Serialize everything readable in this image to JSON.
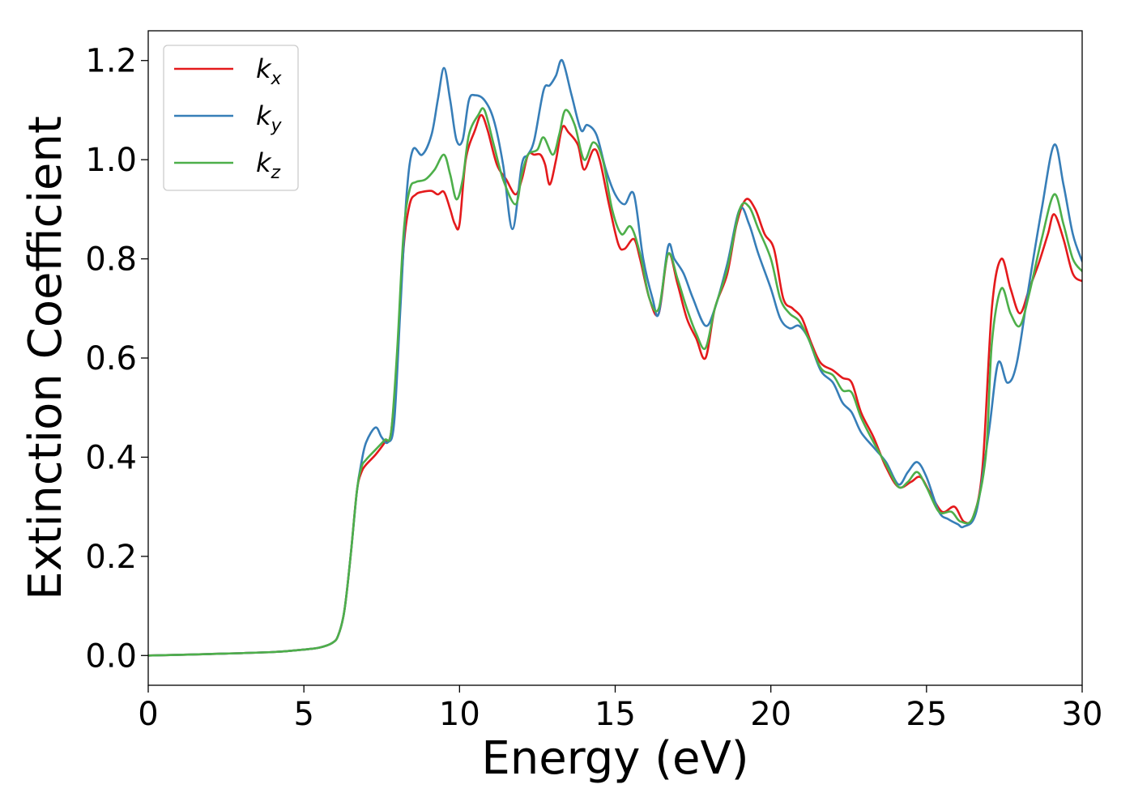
{
  "chart_data": {
    "type": "line",
    "title": "",
    "xlabel": "Energy (eV)",
    "ylabel": "Extinction Coefficient",
    "xlim": [
      0,
      30
    ],
    "ylim": [
      -0.06,
      1.26
    ],
    "xticks": [
      0,
      5,
      10,
      15,
      20,
      25,
      30
    ],
    "xtick_labels": [
      "0",
      "5",
      "10",
      "15",
      "20",
      "25",
      "30"
    ],
    "yticks": [
      0.0,
      0.2,
      0.4,
      0.6,
      0.8,
      1.0,
      1.2
    ],
    "ytick_labels": [
      "0.0",
      "0.2",
      "0.4",
      "0.6",
      "0.8",
      "1.0",
      "1.2"
    ],
    "grid": false,
    "legend_position": "top-left",
    "series": [
      {
        "name": "k",
        "subscript": "x",
        "color": "#e41a1c",
        "points": [
          [
            0,
            0.0
          ],
          [
            2,
            0.003
          ],
          [
            4,
            0.007
          ],
          [
            5,
            0.012
          ],
          [
            5.5,
            0.016
          ],
          [
            5.9,
            0.025
          ],
          [
            6.1,
            0.04
          ],
          [
            6.3,
            0.09
          ],
          [
            6.5,
            0.2
          ],
          [
            6.7,
            0.33
          ],
          [
            6.85,
            0.37
          ],
          [
            7,
            0.385
          ],
          [
            7.3,
            0.405
          ],
          [
            7.6,
            0.43
          ],
          [
            7.8,
            0.45
          ],
          [
            8.0,
            0.6
          ],
          [
            8.2,
            0.82
          ],
          [
            8.4,
            0.91
          ],
          [
            8.6,
            0.93
          ],
          [
            8.8,
            0.935
          ],
          [
            9.1,
            0.937
          ],
          [
            9.3,
            0.93
          ],
          [
            9.5,
            0.935
          ],
          [
            9.7,
            0.9
          ],
          [
            9.85,
            0.87
          ],
          [
            10.0,
            0.87
          ],
          [
            10.2,
            1.0
          ],
          [
            10.5,
            1.06
          ],
          [
            10.7,
            1.09
          ],
          [
            10.9,
            1.06
          ],
          [
            11.2,
            0.99
          ],
          [
            11.5,
            0.96
          ],
          [
            11.8,
            0.93
          ],
          [
            12.0,
            0.96
          ],
          [
            12.2,
            1.01
          ],
          [
            12.4,
            1.01
          ],
          [
            12.6,
            1.01
          ],
          [
            12.75,
            0.99
          ],
          [
            12.9,
            0.95
          ],
          [
            13.1,
            1.0
          ],
          [
            13.3,
            1.065
          ],
          [
            13.5,
            1.055
          ],
          [
            13.8,
            1.03
          ],
          [
            14.0,
            0.98
          ],
          [
            14.3,
            1.02
          ],
          [
            14.5,
            1.0
          ],
          [
            14.8,
            0.91
          ],
          [
            15.1,
            0.83
          ],
          [
            15.3,
            0.82
          ],
          [
            15.6,
            0.84
          ],
          [
            15.8,
            0.8
          ],
          [
            16.1,
            0.72
          ],
          [
            16.4,
            0.69
          ],
          [
            16.7,
            0.81
          ],
          [
            17.0,
            0.75
          ],
          [
            17.3,
            0.68
          ],
          [
            17.6,
            0.64
          ],
          [
            17.9,
            0.6
          ],
          [
            18.2,
            0.7
          ],
          [
            18.6,
            0.77
          ],
          [
            18.9,
            0.87
          ],
          [
            19.2,
            0.92
          ],
          [
            19.5,
            0.9
          ],
          [
            19.8,
            0.85
          ],
          [
            20.1,
            0.82
          ],
          [
            20.4,
            0.72
          ],
          [
            20.7,
            0.7
          ],
          [
            21.0,
            0.68
          ],
          [
            21.3,
            0.63
          ],
          [
            21.6,
            0.59
          ],
          [
            22.0,
            0.575
          ],
          [
            22.3,
            0.56
          ],
          [
            22.6,
            0.55
          ],
          [
            22.9,
            0.49
          ],
          [
            23.3,
            0.44
          ],
          [
            23.7,
            0.38
          ],
          [
            24.1,
            0.34
          ],
          [
            24.5,
            0.35
          ],
          [
            24.8,
            0.36
          ],
          [
            25.1,
            0.33
          ],
          [
            25.5,
            0.29
          ],
          [
            25.9,
            0.3
          ],
          [
            26.2,
            0.27
          ],
          [
            26.5,
            0.28
          ],
          [
            26.8,
            0.38
          ],
          [
            27.1,
            0.7
          ],
          [
            27.4,
            0.8
          ],
          [
            27.7,
            0.74
          ],
          [
            28.0,
            0.69
          ],
          [
            28.3,
            0.74
          ],
          [
            28.6,
            0.79
          ],
          [
            28.9,
            0.85
          ],
          [
            29.1,
            0.89
          ],
          [
            29.4,
            0.84
          ],
          [
            29.7,
            0.77
          ],
          [
            30.0,
            0.755
          ]
        ]
      },
      {
        "name": "k",
        "subscript": "y",
        "color": "#377eb8",
        "points": [
          [
            0,
            0.0
          ],
          [
            2,
            0.003
          ],
          [
            4,
            0.007
          ],
          [
            5,
            0.012
          ],
          [
            5.5,
            0.016
          ],
          [
            5.9,
            0.025
          ],
          [
            6.1,
            0.04
          ],
          [
            6.3,
            0.09
          ],
          [
            6.5,
            0.2
          ],
          [
            6.7,
            0.33
          ],
          [
            6.85,
            0.39
          ],
          [
            7.0,
            0.43
          ],
          [
            7.3,
            0.46
          ],
          [
            7.5,
            0.44
          ],
          [
            7.7,
            0.43
          ],
          [
            7.9,
            0.47
          ],
          [
            8.1,
            0.7
          ],
          [
            8.3,
            0.93
          ],
          [
            8.5,
            1.02
          ],
          [
            8.8,
            1.01
          ],
          [
            9.1,
            1.05
          ],
          [
            9.3,
            1.12
          ],
          [
            9.5,
            1.185
          ],
          [
            9.7,
            1.12
          ],
          [
            9.9,
            1.04
          ],
          [
            10.1,
            1.04
          ],
          [
            10.3,
            1.12
          ],
          [
            10.5,
            1.13
          ],
          [
            10.8,
            1.12
          ],
          [
            11.1,
            1.08
          ],
          [
            11.4,
            0.99
          ],
          [
            11.7,
            0.86
          ],
          [
            12.0,
            0.99
          ],
          [
            12.2,
            1.01
          ],
          [
            12.4,
            1.04
          ],
          [
            12.7,
            1.14
          ],
          [
            12.9,
            1.15
          ],
          [
            13.1,
            1.17
          ],
          [
            13.3,
            1.2
          ],
          [
            13.6,
            1.13
          ],
          [
            13.9,
            1.06
          ],
          [
            14.1,
            1.07
          ],
          [
            14.4,
            1.05
          ],
          [
            14.7,
            0.98
          ],
          [
            15.0,
            0.93
          ],
          [
            15.3,
            0.91
          ],
          [
            15.6,
            0.93
          ],
          [
            15.9,
            0.8
          ],
          [
            16.2,
            0.72
          ],
          [
            16.4,
            0.69
          ],
          [
            16.7,
            0.825
          ],
          [
            16.9,
            0.8
          ],
          [
            17.2,
            0.77
          ],
          [
            17.5,
            0.72
          ],
          [
            17.9,
            0.665
          ],
          [
            18.2,
            0.7
          ],
          [
            18.6,
            0.79
          ],
          [
            19.0,
            0.9
          ],
          [
            19.3,
            0.87
          ],
          [
            19.6,
            0.81
          ],
          [
            20.0,
            0.74
          ],
          [
            20.3,
            0.68
          ],
          [
            20.6,
            0.66
          ],
          [
            20.9,
            0.665
          ],
          [
            21.2,
            0.64
          ],
          [
            21.6,
            0.575
          ],
          [
            22.0,
            0.55
          ],
          [
            22.3,
            0.51
          ],
          [
            22.6,
            0.49
          ],
          [
            22.9,
            0.45
          ],
          [
            23.3,
            0.42
          ],
          [
            23.7,
            0.39
          ],
          [
            24.1,
            0.345
          ],
          [
            24.4,
            0.37
          ],
          [
            24.7,
            0.39
          ],
          [
            25.0,
            0.36
          ],
          [
            25.4,
            0.29
          ],
          [
            25.7,
            0.275
          ],
          [
            26.0,
            0.265
          ],
          [
            26.2,
            0.26
          ],
          [
            26.6,
            0.29
          ],
          [
            27.0,
            0.45
          ],
          [
            27.3,
            0.59
          ],
          [
            27.6,
            0.55
          ],
          [
            27.9,
            0.59
          ],
          [
            28.3,
            0.75
          ],
          [
            28.7,
            0.9
          ],
          [
            29.1,
            1.03
          ],
          [
            29.4,
            0.95
          ],
          [
            29.7,
            0.85
          ],
          [
            30.0,
            0.795
          ]
        ]
      },
      {
        "name": "k",
        "subscript": "z",
        "color": "#4daf4a",
        "points": [
          [
            0,
            0.0
          ],
          [
            2,
            0.003
          ],
          [
            4,
            0.007
          ],
          [
            5,
            0.012
          ],
          [
            5.5,
            0.016
          ],
          [
            5.9,
            0.025
          ],
          [
            6.1,
            0.04
          ],
          [
            6.3,
            0.09
          ],
          [
            6.5,
            0.2
          ],
          [
            6.7,
            0.33
          ],
          [
            6.85,
            0.38
          ],
          [
            7.0,
            0.395
          ],
          [
            7.3,
            0.415
          ],
          [
            7.6,
            0.435
          ],
          [
            7.8,
            0.45
          ],
          [
            8.0,
            0.62
          ],
          [
            8.2,
            0.85
          ],
          [
            8.4,
            0.94
          ],
          [
            8.6,
            0.955
          ],
          [
            8.9,
            0.96
          ],
          [
            9.2,
            0.98
          ],
          [
            9.5,
            1.01
          ],
          [
            9.7,
            0.97
          ],
          [
            9.9,
            0.92
          ],
          [
            10.1,
            0.96
          ],
          [
            10.3,
            1.05
          ],
          [
            10.6,
            1.09
          ],
          [
            10.8,
            1.1
          ],
          [
            11.1,
            1.03
          ],
          [
            11.4,
            0.96
          ],
          [
            11.8,
            0.91
          ],
          [
            12.0,
            0.97
          ],
          [
            12.2,
            1.01
          ],
          [
            12.5,
            1.02
          ],
          [
            12.7,
            1.045
          ],
          [
            13.0,
            1.01
          ],
          [
            13.2,
            1.05
          ],
          [
            13.4,
            1.1
          ],
          [
            13.7,
            1.07
          ],
          [
            14.0,
            1.0
          ],
          [
            14.3,
            1.035
          ],
          [
            14.6,
            1.0
          ],
          [
            14.9,
            0.9
          ],
          [
            15.2,
            0.85
          ],
          [
            15.5,
            0.865
          ],
          [
            15.8,
            0.81
          ],
          [
            16.1,
            0.72
          ],
          [
            16.4,
            0.7
          ],
          [
            16.7,
            0.81
          ],
          [
            17.0,
            0.76
          ],
          [
            17.3,
            0.7
          ],
          [
            17.6,
            0.65
          ],
          [
            17.9,
            0.62
          ],
          [
            18.2,
            0.7
          ],
          [
            18.6,
            0.78
          ],
          [
            19.0,
            0.9
          ],
          [
            19.3,
            0.905
          ],
          [
            19.6,
            0.86
          ],
          [
            20.0,
            0.8
          ],
          [
            20.3,
            0.72
          ],
          [
            20.6,
            0.69
          ],
          [
            20.9,
            0.675
          ],
          [
            21.2,
            0.64
          ],
          [
            21.6,
            0.58
          ],
          [
            22.0,
            0.565
          ],
          [
            22.3,
            0.535
          ],
          [
            22.6,
            0.53
          ],
          [
            22.9,
            0.48
          ],
          [
            23.3,
            0.43
          ],
          [
            23.7,
            0.385
          ],
          [
            24.1,
            0.34
          ],
          [
            24.4,
            0.35
          ],
          [
            24.7,
            0.37
          ],
          [
            25.0,
            0.34
          ],
          [
            25.4,
            0.29
          ],
          [
            25.8,
            0.29
          ],
          [
            26.1,
            0.27
          ],
          [
            26.5,
            0.28
          ],
          [
            26.9,
            0.4
          ],
          [
            27.1,
            0.63
          ],
          [
            27.4,
            0.74
          ],
          [
            27.7,
            0.69
          ],
          [
            28.0,
            0.665
          ],
          [
            28.3,
            0.73
          ],
          [
            28.7,
            0.84
          ],
          [
            29.1,
            0.93
          ],
          [
            29.4,
            0.87
          ],
          [
            29.7,
            0.8
          ],
          [
            30.0,
            0.775
          ]
        ]
      }
    ]
  }
}
